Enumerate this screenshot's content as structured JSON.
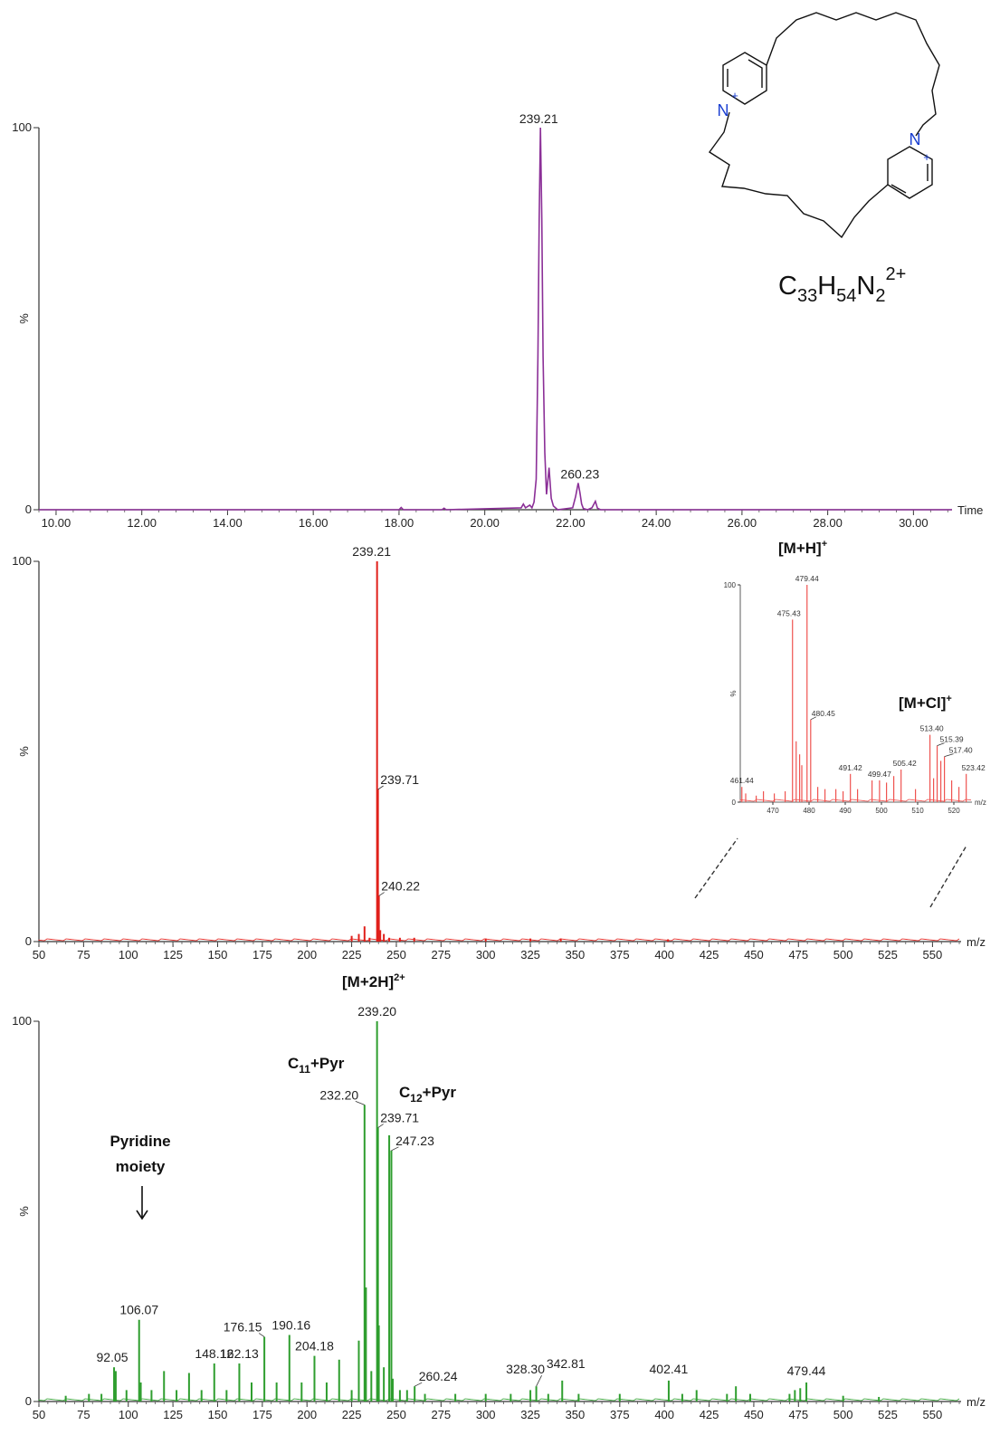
{
  "formula": {
    "base": "C",
    "n1": "33",
    "h": "H",
    "n2": "54",
    "n": "N",
    "n3": "2",
    "charge": "2+"
  },
  "structure": {
    "n_label": "N",
    "plus": "+"
  },
  "annotations": {
    "mh": "[M+H]",
    "mh_sup": "+",
    "mcl": "[M+Cl]",
    "mcl_sup": "+",
    "m2h": "[M+2H]",
    "m2h_sup": "2+",
    "c11_a": "C",
    "c11_sub": "11",
    "c11_b": "+Pyr",
    "c12_a": "C",
    "c12_sub": "12",
    "c12_b": "+Pyr",
    "pyr_line1": "Pyridine",
    "pyr_line2": "moiety"
  },
  "chart_data": [
    {
      "type": "line",
      "id": "chromatogram",
      "color": "#8b2f97",
      "xlabel": "Time",
      "ylabel": "%",
      "xlim": [
        9.6,
        30.9
      ],
      "ylim": [
        0,
        100
      ],
      "xticks": [
        "10.00",
        "12.00",
        "14.00",
        "16.00",
        "18.00",
        "20.00",
        "22.00",
        "24.00",
        "26.00",
        "28.00",
        "30.00"
      ],
      "yticks": [
        "0",
        "100"
      ],
      "x": [
        9.6,
        18.0,
        18.05,
        18.1,
        19.0,
        19.05,
        19.1,
        20.85,
        20.9,
        20.95,
        21.05,
        21.1,
        21.15,
        21.2,
        21.24,
        21.27,
        21.3,
        21.33,
        21.36,
        21.4,
        21.44,
        21.5,
        21.55,
        21.6,
        21.7,
        22.05,
        22.12,
        22.18,
        22.22,
        22.26,
        22.3,
        22.4,
        22.5,
        22.58,
        22.63,
        22.7,
        23.0,
        30.9
      ],
      "y": [
        0,
        0,
        0.6,
        0,
        0,
        0.4,
        0,
        0.5,
        1.5,
        0.5,
        1.2,
        0.5,
        2,
        8,
        40,
        76,
        100,
        76,
        40,
        15,
        4,
        11,
        3,
        1,
        0,
        0.5,
        3.5,
        7,
        4.5,
        1.5,
        0.3,
        0,
        0.5,
        2.2,
        0.4,
        0,
        0,
        0
      ],
      "peak_labels": [
        {
          "x": 21.3,
          "y": 100,
          "text": "239.21"
        },
        {
          "x": 22.22,
          "y": 7,
          "text": "260.23"
        }
      ]
    },
    {
      "type": "bar",
      "id": "ms1",
      "color": "#e0201b",
      "xlabel": "m/z",
      "ylabel": "%",
      "xlim": [
        50,
        566
      ],
      "ylim": [
        0,
        100
      ],
      "xticks": [
        "50",
        "75",
        "100",
        "125",
        "150",
        "175",
        "200",
        "225",
        "250",
        "275",
        "300",
        "325",
        "350",
        "375",
        "400",
        "425",
        "450",
        "475",
        "500",
        "525",
        "550"
      ],
      "yticks": [
        "0",
        "100"
      ],
      "x": [
        225.0,
        229.0,
        232.2,
        235.0,
        239.21,
        239.71,
        240.22,
        241.0,
        243.0,
        246.0,
        252.0,
        260.0,
        300.0,
        325.0,
        342.0,
        402.0
      ],
      "y": [
        1.5,
        2,
        4,
        1,
        100,
        40,
        12,
        3,
        2,
        1,
        1,
        1,
        0.8,
        0.8,
        0.8,
        0.6
      ],
      "peak_labels": [
        {
          "x": 239.21,
          "y": 100,
          "text": "239.21"
        },
        {
          "x": 239.71,
          "y": 40,
          "text": "239.71"
        },
        {
          "x": 240.22,
          "y": 12,
          "text": "240.22"
        }
      ]
    },
    {
      "type": "bar",
      "id": "ms1_inset",
      "color": "#ef5350",
      "xlabel": "m/z",
      "ylabel": "%",
      "xlim": [
        461,
        525
      ],
      "ylim": [
        0,
        100
      ],
      "xticks": [
        "470",
        "480",
        "490",
        "500",
        "510",
        "520"
      ],
      "yticks": [
        "0",
        "100"
      ],
      "x": [
        461.44,
        462.5,
        465.4,
        467.4,
        470.4,
        473.4,
        475.43,
        476.44,
        477.4,
        478.0,
        479.44,
        480.45,
        482.4,
        484.4,
        487.4,
        489.4,
        491.42,
        493.4,
        497.4,
        499.47,
        501.4,
        503.4,
        505.42,
        509.4,
        513.4,
        514.4,
        515.39,
        516.4,
        517.4,
        519.4,
        521.4,
        523.42
      ],
      "y": [
        7,
        4,
        3,
        5,
        4,
        5,
        84,
        28,
        22,
        17,
        100,
        38,
        7,
        6,
        6,
        5,
        13,
        6,
        10,
        10,
        9,
        12,
        15,
        6,
        31,
        11,
        26,
        19,
        21,
        10,
        7,
        13
      ],
      "peak_labels": [
        {
          "x": 461.44,
          "y": 7,
          "text": "461.44"
        },
        {
          "x": 475.43,
          "y": 84,
          "text": "475.43"
        },
        {
          "x": 479.44,
          "y": 100,
          "text": "479.44"
        },
        {
          "x": 480.45,
          "y": 38,
          "text": "480.45"
        },
        {
          "x": 491.42,
          "y": 13,
          "text": "491.42"
        },
        {
          "x": 499.47,
          "y": 10,
          "text": "499.47"
        },
        {
          "x": 505.42,
          "y": 15,
          "text": "505.42"
        },
        {
          "x": 513.4,
          "y": 31,
          "text": "513.40"
        },
        {
          "x": 515.39,
          "y": 26,
          "text": "515.39"
        },
        {
          "x": 517.4,
          "y": 21,
          "text": "517.40"
        },
        {
          "x": 523.42,
          "y": 13,
          "text": "523.42"
        }
      ]
    },
    {
      "type": "bar",
      "id": "ms2",
      "color": "#2f9e2f",
      "xlabel": "m/z",
      "ylabel": "%",
      "xlim": [
        50,
        566
      ],
      "ylim": [
        0,
        100
      ],
      "xticks": [
        "50",
        "75",
        "100",
        "125",
        "150",
        "175",
        "200",
        "225",
        "250",
        "275",
        "300",
        "325",
        "350",
        "375",
        "400",
        "425",
        "450",
        "475",
        "500",
        "525",
        "550"
      ],
      "yticks": [
        "0",
        "100"
      ],
      "x": [
        65.0,
        78.0,
        85.0,
        92.05,
        93.0,
        99.0,
        106.07,
        107.0,
        113.0,
        120.0,
        127.0,
        134.0,
        141.0,
        148.12,
        155.0,
        162.13,
        169.0,
        176.15,
        183.0,
        190.16,
        197.0,
        204.18,
        211.0,
        218.0,
        225.0,
        229.0,
        232.2,
        233.0,
        236.0,
        239.2,
        239.71,
        240.2,
        243.0,
        246.0,
        247.23,
        248.0,
        252.0,
        256.0,
        260.24,
        266.0,
        283.0,
        300.0,
        314.0,
        325.0,
        328.3,
        335.0,
        342.81,
        352.0,
        375.0,
        402.41,
        410.0,
        418.0,
        435.0,
        440.0,
        448.0,
        470.0,
        473.0,
        476.0,
        479.44,
        500.0,
        520.0
      ],
      "y": [
        1.5,
        2,
        2,
        9,
        8,
        3,
        21.5,
        5,
        3,
        8,
        3,
        7.5,
        3,
        10,
        3,
        10,
        5,
        17,
        5,
        17.5,
        5,
        12,
        5,
        11,
        3,
        16,
        78,
        30,
        8,
        100,
        72,
        20,
        9,
        70,
        66,
        6,
        3,
        3,
        4,
        2,
        2,
        2,
        2,
        3,
        4,
        2,
        5.5,
        2,
        2,
        5.5,
        2,
        3,
        2,
        4,
        2,
        2,
        3,
        3.5,
        5,
        1.5,
        1.2
      ],
      "peak_labels": [
        {
          "x": 92.05,
          "y": 9,
          "text": "92.05"
        },
        {
          "x": 106.07,
          "y": 21.5,
          "text": "106.07"
        },
        {
          "x": 148.12,
          "y": 10,
          "text": "148.12"
        },
        {
          "x": 162.13,
          "y": 10,
          "text": "162.13"
        },
        {
          "x": 176.15,
          "y": 17,
          "text": "176.15"
        },
        {
          "x": 190.16,
          "y": 17.5,
          "text": "190.16"
        },
        {
          "x": 204.18,
          "y": 12,
          "text": "204.18"
        },
        {
          "x": 232.2,
          "y": 78,
          "text": "232.20"
        },
        {
          "x": 239.2,
          "y": 100,
          "text": "239.20"
        },
        {
          "x": 239.71,
          "y": 72,
          "text": "239.71"
        },
        {
          "x": 247.23,
          "y": 66,
          "text": "247.23"
        },
        {
          "x": 260.24,
          "y": 4,
          "text": "260.24"
        },
        {
          "x": 328.3,
          "y": 4,
          "text": "328.30"
        },
        {
          "x": 342.81,
          "y": 5.5,
          "text": "342.81"
        },
        {
          "x": 402.41,
          "y": 5.5,
          "text": "402.41"
        },
        {
          "x": 479.44,
          "y": 5,
          "text": "479.44"
        }
      ]
    }
  ]
}
